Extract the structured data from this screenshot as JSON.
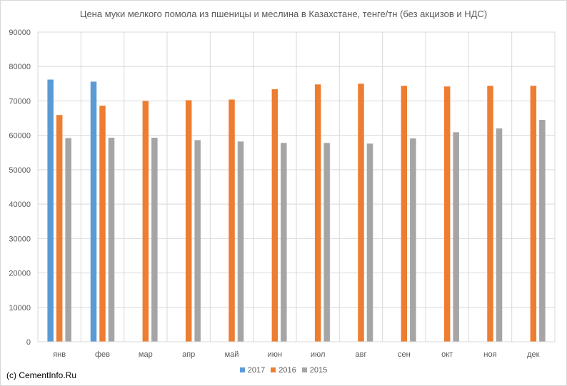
{
  "chart_data": {
    "type": "bar",
    "title": "Цена муки мелкого помола из пшеницы и меслина в Казахстане, тенге/тн (без акцизов и НДС)",
    "xlabel": "",
    "ylabel": "",
    "categories": [
      "янв",
      "фев",
      "мар",
      "апр",
      "май",
      "июн",
      "июл",
      "авг",
      "сен",
      "окт",
      "ноя",
      "дек"
    ],
    "ylim": [
      0,
      90000
    ],
    "yticks": [
      0,
      10000,
      20000,
      30000,
      40000,
      50000,
      60000,
      70000,
      80000,
      90000
    ],
    "grid": "both",
    "legend_position": "bottom",
    "series": [
      {
        "name": "2017",
        "color": "#5b9bd5",
        "values": [
          76200,
          75600,
          null,
          null,
          null,
          null,
          null,
          null,
          null,
          null,
          null,
          null
        ]
      },
      {
        "name": "2016",
        "color": "#ed7d31",
        "values": [
          65900,
          68600,
          70000,
          70200,
          70400,
          73400,
          74800,
          75000,
          74400,
          74200,
          74400,
          74400
        ]
      },
      {
        "name": "2015",
        "color": "#a5a5a5",
        "values": [
          59200,
          59300,
          59300,
          58600,
          58200,
          57800,
          57800,
          57600,
          59100,
          60900,
          62000,
          64500
        ]
      }
    ]
  },
  "footer": {
    "copyright": "(c) CementInfo.Ru"
  }
}
